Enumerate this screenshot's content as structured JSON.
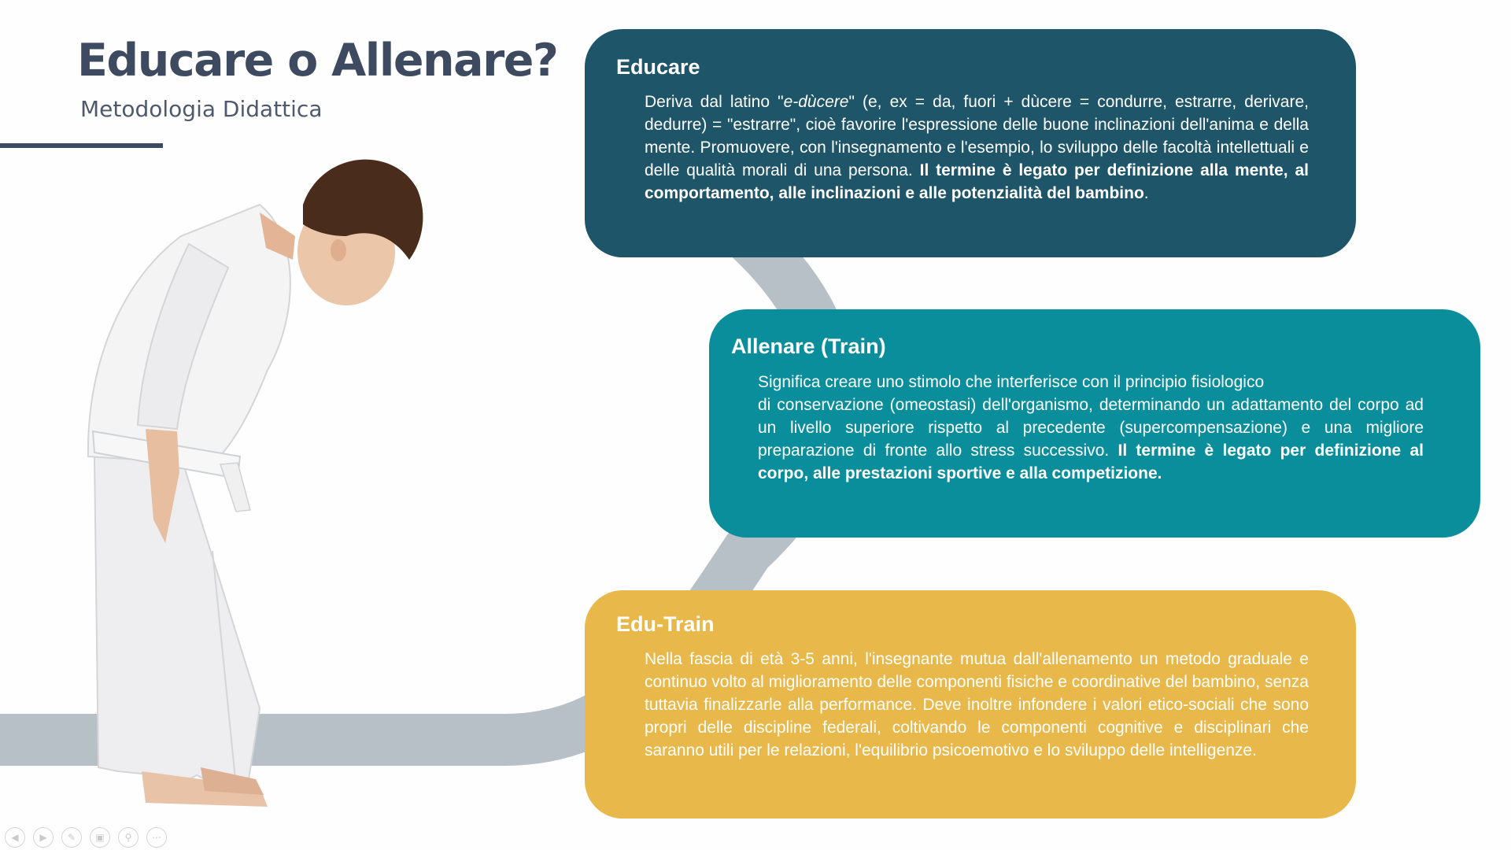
{
  "slide": {
    "title": "Educare o Allenare?",
    "subtitle": "Metodologia Didattica"
  },
  "cards": [
    {
      "id": "educare",
      "heading": "Educare",
      "color": "#1f5569",
      "parts": [
        {
          "text": "Deriva dal latino \"",
          "style": "normal"
        },
        {
          "text": "e-dùcere",
          "style": "italic"
        },
        {
          "text": "\" (e, ex = da, fuori + dùcere = condurre, estrarre, derivare, dedurre) = \"estrarre\", cioè favorire l'espressione delle buone inclinazioni dell'anima e della mente. Promuovere, con l'insegnamento e l'esempio, lo sviluppo delle facoltà intellettuali e delle qualità morali di una persona. ",
          "style": "normal"
        },
        {
          "text": "Il termine è legato per definizione alla mente, al comportamento, alle inclinazioni e alle potenzialità del bambino",
          "style": "bold"
        },
        {
          "text": ".",
          "style": "normal"
        }
      ]
    },
    {
      "id": "allenare",
      "heading": "Allenare (Train)",
      "color": "#0a8e9c",
      "parts": [
        {
          "text": "Significa creare uno stimolo che interferisce con il principio fisiologico",
          "style": "line"
        },
        {
          "text": "di conservazione (omeostasi) dell'organismo, determinando un adattamento del corpo ad un livello superiore rispetto al precedente (supercompensazione) e una migliore preparazione di fronte allo stress successivo. ",
          "style": "normal"
        },
        {
          "text": "Il termine è legato per definizione al corpo, alle prestazioni sportive e alla competizione.",
          "style": "bold"
        }
      ]
    },
    {
      "id": "edutrain",
      "heading": "Edu-Train",
      "color": "#e8b94a",
      "parts": [
        {
          "text": "Nella fascia di età 3-5 anni, l'insegnante mutua dall'allenamento un metodo graduale e continuo volto al miglioramento delle componenti fisiche e coordinative del bambino, senza tuttavia finalizzarle alla performance. Deve inoltre infondere i valori etico-sociali che sono propri delle discipline federali, coltivando le componenti cognitive e disciplinari che saranno utili per le relazioni, l'equilibrio psicoemotivo e lo sviluppo delle intelligenze.",
          "style": "normal"
        }
      ]
    }
  ],
  "toolbar": [
    {
      "name": "previous-slide-button",
      "glyph": "◀"
    },
    {
      "name": "next-slide-button",
      "glyph": "▶"
    },
    {
      "name": "pen-tool-button",
      "glyph": "✎"
    },
    {
      "name": "slide-overview-button",
      "glyph": "▣"
    },
    {
      "name": "zoom-button",
      "glyph": "⚲"
    },
    {
      "name": "more-options-button",
      "glyph": "⋯"
    }
  ],
  "colors": {
    "title": "#3d4a60",
    "connector": "#b7bfc7",
    "gi_shadow": "#d3d5d7"
  }
}
